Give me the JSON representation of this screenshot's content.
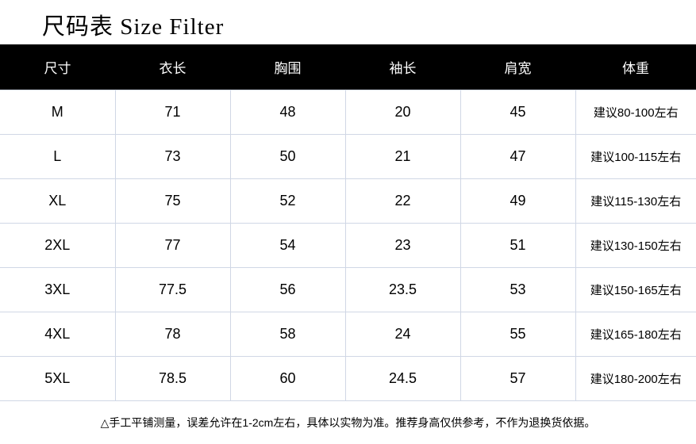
{
  "title": "尺码表 Size Filter",
  "colors": {
    "header_bg": "#000000",
    "header_text": "#ffffff",
    "grid": "#d0d7e5"
  },
  "headers": [
    "尺寸",
    "衣长",
    "胸围",
    "袖长",
    "肩宽",
    "体重"
  ],
  "rows": [
    [
      "M",
      "71",
      "48",
      "20",
      "45",
      "建议80-100左右"
    ],
    [
      "L",
      "73",
      "50",
      "21",
      "47",
      "建议100-115左右"
    ],
    [
      "XL",
      "75",
      "52",
      "22",
      "49",
      "建议115-130左右"
    ],
    [
      "2XL",
      "77",
      "54",
      "23",
      "51",
      "建议130-150左右"
    ],
    [
      "3XL",
      "77.5",
      "56",
      "23.5",
      "53",
      "建议150-165左右"
    ],
    [
      "4XL",
      "78",
      "58",
      "24",
      "55",
      "建议165-180左右"
    ],
    [
      "5XL",
      "78.5",
      "60",
      "24.5",
      "57",
      "建议180-200左右"
    ]
  ],
  "note": "△手工平铺测量，误差允许在1-2cm左右，具体以实物为准。推荐身高仅供参考，不作为退换货依据。"
}
